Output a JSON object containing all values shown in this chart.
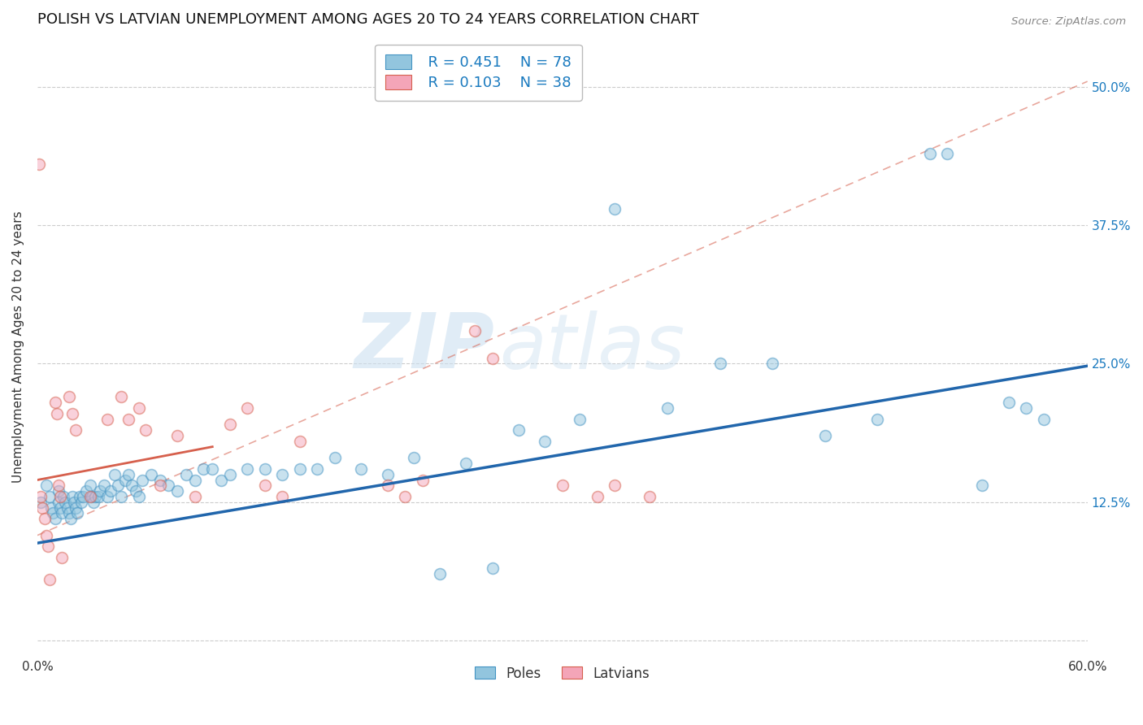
{
  "title": "POLISH VS LATVIAN UNEMPLOYMENT AMONG AGES 20 TO 24 YEARS CORRELATION CHART",
  "source": "Source: ZipAtlas.com",
  "ylabel": "Unemployment Among Ages 20 to 24 years",
  "xlim": [
    0.0,
    0.6
  ],
  "ylim": [
    -0.015,
    0.545
  ],
  "ytick_positions": [
    0.0,
    0.125,
    0.25,
    0.375,
    0.5
  ],
  "ytick_labels": [
    "",
    "12.5%",
    "25.0%",
    "37.5%",
    "50.0%"
  ],
  "poles_R": 0.451,
  "poles_N": 78,
  "latvians_R": 0.103,
  "latvians_N": 38,
  "poles_color": "#92c5de",
  "poles_edge_color": "#4393c3",
  "poles_line_color": "#2166ac",
  "latvians_color": "#f4a5b8",
  "latvians_edge_color": "#d6604d",
  "latvians_line_color": "#d6604d",
  "legend_text_color": "#1a7abf",
  "poles_scatter_x": [
    0.002,
    0.005,
    0.007,
    0.008,
    0.009,
    0.01,
    0.012,
    0.012,
    0.013,
    0.014,
    0.015,
    0.016,
    0.017,
    0.018,
    0.019,
    0.02,
    0.021,
    0.022,
    0.023,
    0.024,
    0.025,
    0.026,
    0.028,
    0.03,
    0.031,
    0.032,
    0.033,
    0.035,
    0.036,
    0.038,
    0.04,
    0.042,
    0.044,
    0.046,
    0.048,
    0.05,
    0.052,
    0.054,
    0.056,
    0.058,
    0.06,
    0.065,
    0.07,
    0.075,
    0.08,
    0.085,
    0.09,
    0.095,
    0.1,
    0.105,
    0.11,
    0.12,
    0.13,
    0.14,
    0.15,
    0.16,
    0.17,
    0.185,
    0.2,
    0.215,
    0.23,
    0.245,
    0.26,
    0.275,
    0.29,
    0.31,
    0.33,
    0.36,
    0.39,
    0.42,
    0.45,
    0.48,
    0.51,
    0.52,
    0.54,
    0.555,
    0.565,
    0.575
  ],
  "poles_scatter_y": [
    0.125,
    0.14,
    0.13,
    0.12,
    0.115,
    0.11,
    0.135,
    0.125,
    0.12,
    0.115,
    0.13,
    0.125,
    0.12,
    0.115,
    0.11,
    0.13,
    0.125,
    0.12,
    0.115,
    0.13,
    0.125,
    0.13,
    0.135,
    0.14,
    0.13,
    0.125,
    0.13,
    0.13,
    0.135,
    0.14,
    0.13,
    0.135,
    0.15,
    0.14,
    0.13,
    0.145,
    0.15,
    0.14,
    0.135,
    0.13,
    0.145,
    0.15,
    0.145,
    0.14,
    0.135,
    0.15,
    0.145,
    0.155,
    0.155,
    0.145,
    0.15,
    0.155,
    0.155,
    0.15,
    0.155,
    0.155,
    0.165,
    0.155,
    0.15,
    0.165,
    0.06,
    0.16,
    0.065,
    0.19,
    0.18,
    0.2,
    0.39,
    0.21,
    0.25,
    0.25,
    0.185,
    0.2,
    0.44,
    0.44,
    0.14,
    0.215,
    0.21,
    0.2
  ],
  "latvians_scatter_x": [
    0.001,
    0.002,
    0.003,
    0.004,
    0.005,
    0.006,
    0.007,
    0.01,
    0.011,
    0.012,
    0.013,
    0.014,
    0.018,
    0.02,
    0.022,
    0.03,
    0.04,
    0.048,
    0.052,
    0.058,
    0.062,
    0.07,
    0.08,
    0.09,
    0.11,
    0.12,
    0.13,
    0.14,
    0.15,
    0.2,
    0.21,
    0.22,
    0.25,
    0.26,
    0.3,
    0.32,
    0.33,
    0.35
  ],
  "latvians_scatter_y": [
    0.43,
    0.13,
    0.12,
    0.11,
    0.095,
    0.085,
    0.055,
    0.215,
    0.205,
    0.14,
    0.13,
    0.075,
    0.22,
    0.205,
    0.19,
    0.13,
    0.2,
    0.22,
    0.2,
    0.21,
    0.19,
    0.14,
    0.185,
    0.13,
    0.195,
    0.21,
    0.14,
    0.13,
    0.18,
    0.14,
    0.13,
    0.145,
    0.28,
    0.255,
    0.14,
    0.13,
    0.14,
    0.13
  ],
  "poles_trend_x": [
    0.0,
    0.6
  ],
  "poles_trend_y": [
    0.088,
    0.248
  ],
  "latvians_solid_trend_x": [
    0.0,
    0.1
  ],
  "latvians_solid_trend_y": [
    0.145,
    0.175
  ],
  "latvians_dash_trend_x": [
    0.0,
    0.6
  ],
  "latvians_dash_trend_y": [
    0.095,
    0.505
  ],
  "watermark_zip": "ZIP",
  "watermark_atlas": "atlas",
  "background_color": "#ffffff",
  "grid_color": "#cccccc",
  "title_fontsize": 13,
  "axis_label_fontsize": 11,
  "tick_fontsize": 11,
  "scatter_size": 100,
  "scatter_alpha": 0.5
}
